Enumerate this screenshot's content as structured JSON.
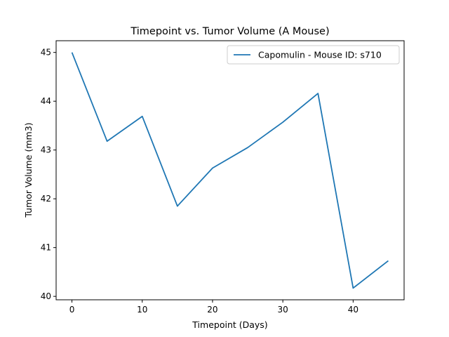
{
  "chart_data": {
    "type": "line",
    "title": "Timepoint vs. Tumor Volume (A Mouse)",
    "xlabel": "Timepoint (Days)",
    "ylabel": "Tumor Volume (mm3)",
    "xlim": [
      -2.25,
      47.25
    ],
    "ylim": [
      39.93,
      45.24
    ],
    "xticks": [
      0,
      10,
      20,
      30,
      40
    ],
    "yticks": [
      40,
      41,
      42,
      43,
      44,
      45
    ],
    "grid": false,
    "legend_position": "top-right",
    "series": [
      {
        "name": "Capomulin - Mouse ID: s710",
        "color": "#1f77b4",
        "x": [
          0,
          5,
          10,
          15,
          20,
          25,
          30,
          35,
          40,
          45
        ],
        "y": [
          45.0,
          43.18,
          43.69,
          41.85,
          42.63,
          43.05,
          43.57,
          44.16,
          40.17,
          40.73
        ]
      }
    ]
  }
}
